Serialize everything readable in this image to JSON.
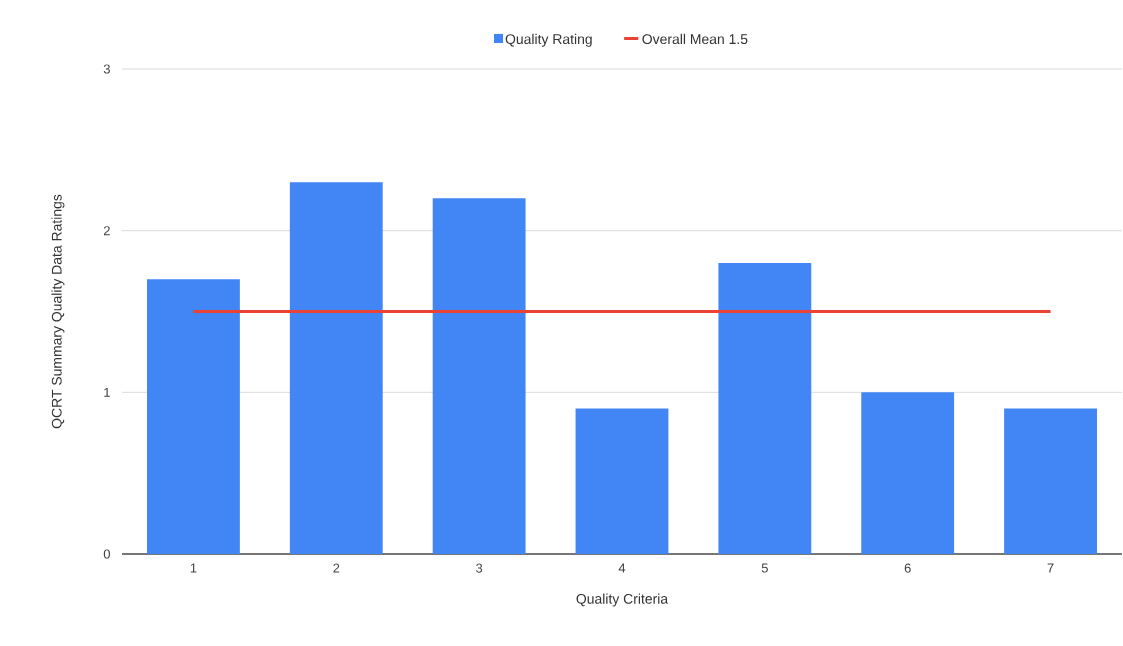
{
  "chart_data": {
    "type": "bar",
    "xlabel": "Quality Criteria",
    "ylabel": "QCRT Summary Quality Data Ratings",
    "categories": [
      "1",
      "2",
      "3",
      "4",
      "5",
      "6",
      "7"
    ],
    "series": [
      {
        "name": "Quality Rating",
        "color": "#4285f4",
        "values": [
          1.7,
          2.3,
          2.2,
          0.9,
          1.8,
          1.0,
          0.9
        ]
      },
      {
        "name": "Overall Mean 1.5",
        "type": "line",
        "color": "#ea4335",
        "values": [
          1.5,
          1.5,
          1.5,
          1.5,
          1.5,
          1.5,
          1.5
        ]
      }
    ],
    "ylim": [
      0,
      3
    ],
    "yticks": [
      0,
      1,
      2,
      3
    ],
    "grid": "y",
    "legend": "top"
  }
}
